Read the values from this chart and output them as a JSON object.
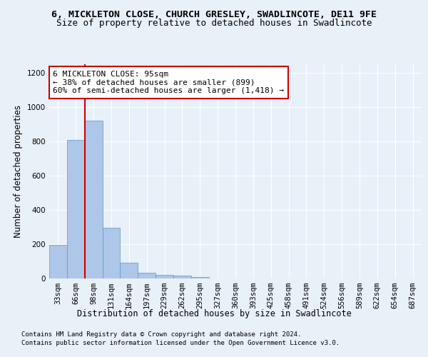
{
  "title1": "6, MICKLETON CLOSE, CHURCH GRESLEY, SWADLINCOTE, DE11 9FE",
  "title2": "Size of property relative to detached houses in Swadlincote",
  "xlabel": "Distribution of detached houses by size in Swadlincote",
  "ylabel": "Number of detached properties",
  "bin_labels": [
    "33sqm",
    "66sqm",
    "98sqm",
    "131sqm",
    "164sqm",
    "197sqm",
    "229sqm",
    "262sqm",
    "295sqm",
    "327sqm",
    "360sqm",
    "393sqm",
    "425sqm",
    "458sqm",
    "491sqm",
    "524sqm",
    "556sqm",
    "589sqm",
    "622sqm",
    "654sqm",
    "687sqm"
  ],
  "bar_values": [
    195,
    810,
    920,
    295,
    90,
    35,
    20,
    15,
    10,
    0,
    0,
    0,
    0,
    0,
    0,
    0,
    0,
    0,
    0,
    0,
    0
  ],
  "bar_color": "#aec6e8",
  "bar_edge_color": "#5599cc",
  "vline_color": "#cc0000",
  "ylim": [
    0,
    1250
  ],
  "yticks": [
    0,
    200,
    400,
    600,
    800,
    1000,
    1200
  ],
  "annotation_title": "6 MICKLETON CLOSE: 95sqm",
  "annotation_line1": "← 38% of detached houses are smaller (899)",
  "annotation_line2": "60% of semi-detached houses are larger (1,418) →",
  "annotation_box_color": "#ffffff",
  "annotation_box_edge": "#cc0000",
  "footer1": "Contains HM Land Registry data © Crown copyright and database right 2024.",
  "footer2": "Contains public sector information licensed under the Open Government Licence v3.0.",
  "bg_color": "#e8f0f8",
  "plot_bg_color": "#e8f0f8",
  "grid_color": "#ffffff",
  "title1_fontsize": 9.5,
  "title2_fontsize": 9,
  "axis_label_fontsize": 8.5,
  "tick_fontsize": 7.5,
  "annotation_fontsize": 8,
  "footer_fontsize": 6.5
}
